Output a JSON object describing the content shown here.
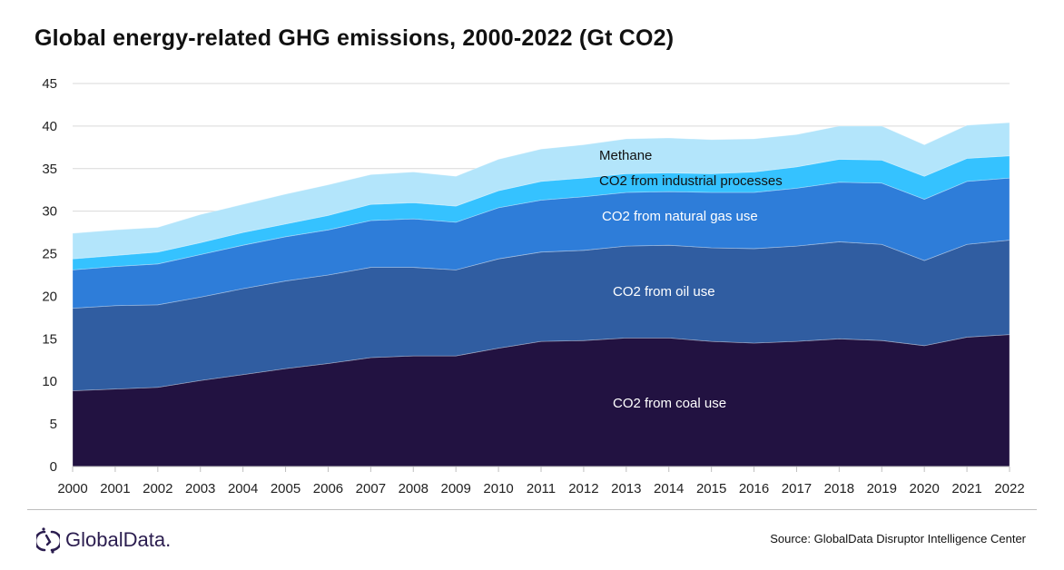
{
  "chart_data": {
    "type": "area",
    "stacked": true,
    "title": "Global energy-related GHG emissions, 2000-2022 (Gt CO2)",
    "xlabel": "",
    "ylabel": "",
    "ylim": [
      0,
      45
    ],
    "yticks": [
      0,
      5,
      10,
      15,
      20,
      25,
      30,
      35,
      40,
      45
    ],
    "grid": true,
    "legend": "inline labels",
    "x": [
      "2000",
      "2001",
      "2002",
      "2003",
      "2004",
      "2005",
      "2006",
      "2007",
      "2008",
      "2009",
      "2010",
      "2011",
      "2012",
      "2013",
      "2014",
      "2015",
      "2016",
      "2017",
      "2018",
      "2019",
      "2020",
      "2021",
      "2022"
    ],
    "series": [
      {
        "name": "CO2 from coal use",
        "color": "#221241",
        "label_color": "#ffffff",
        "values": [
          8.9,
          9.1,
          9.3,
          10.1,
          10.8,
          11.5,
          12.1,
          12.8,
          13.0,
          13.0,
          13.9,
          14.7,
          14.8,
          15.1,
          15.1,
          14.7,
          14.5,
          14.7,
          15.0,
          14.8,
          14.2,
          15.2,
          15.5
        ]
      },
      {
        "name": "CO2 from oil use",
        "color": "#305DA1",
        "label_color": "#ffffff",
        "values": [
          9.7,
          9.8,
          9.7,
          9.8,
          10.1,
          10.3,
          10.4,
          10.6,
          10.4,
          10.1,
          10.5,
          10.5,
          10.6,
          10.8,
          10.9,
          11.0,
          11.1,
          11.2,
          11.4,
          11.3,
          10.0,
          10.9,
          11.1
        ]
      },
      {
        "name": "CO2 from natural gas use",
        "color": "#2E7DD9",
        "label_color": "#ffffff",
        "values": [
          4.5,
          4.6,
          4.8,
          5.0,
          5.1,
          5.2,
          5.3,
          5.5,
          5.7,
          5.6,
          6.0,
          6.1,
          6.3,
          6.3,
          6.3,
          6.5,
          6.6,
          6.8,
          7.0,
          7.2,
          7.2,
          7.4,
          7.3
        ]
      },
      {
        "name": "CO2 from industrial processes",
        "color": "#35C2FF",
        "label_color": "#111111",
        "values": [
          1.3,
          1.3,
          1.4,
          1.4,
          1.5,
          1.5,
          1.7,
          1.9,
          1.9,
          1.9,
          2.0,
          2.2,
          2.2,
          2.2,
          2.2,
          2.2,
          2.4,
          2.5,
          2.7,
          2.7,
          2.7,
          2.7,
          2.6
        ]
      },
      {
        "name": "Methane",
        "color": "#B3E5FB",
        "label_color": "#111111",
        "values": [
          3.0,
          3.0,
          2.9,
          3.3,
          3.3,
          3.5,
          3.6,
          3.5,
          3.6,
          3.5,
          3.7,
          3.8,
          3.9,
          4.1,
          4.1,
          4.0,
          3.9,
          3.8,
          3.9,
          4.0,
          3.7,
          3.9,
          3.9
        ]
      }
    ]
  },
  "footer": {
    "logo": "GlobalData.",
    "source": "Source:  GlobalData Disruptor Intelligence Center"
  },
  "colors": {
    "brand": "#2b1d4f",
    "grid": "#d9d9d9"
  }
}
